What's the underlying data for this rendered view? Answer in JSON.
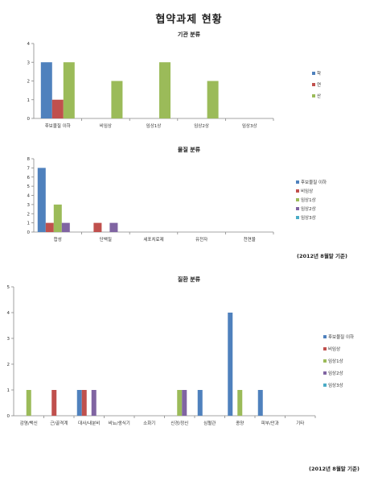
{
  "page_title": "협약과제 현황",
  "notes": {
    "date_note_1": "(2012년 8월말 기준)",
    "date_note_2": "(2012년 8월말 기준)"
  },
  "chart_data": [
    {
      "type": "bar",
      "title": "기관 분류",
      "categories": [
        "후보물질 이하",
        "비임상",
        "임상1상",
        "임상2상",
        "임상3상"
      ],
      "ylim": [
        0,
        4
      ],
      "yticks": [
        0,
        1,
        2,
        3,
        4
      ],
      "grid": false,
      "legend": "right",
      "series": [
        {
          "name": "학",
          "color": "#4F81BD",
          "values": [
            3,
            0,
            0,
            0,
            0
          ]
        },
        {
          "name": "연",
          "color": "#C0504D",
          "values": [
            1,
            0,
            0,
            0,
            0
          ]
        },
        {
          "name": "산",
          "color": "#9BBB59",
          "values": [
            3,
            2,
            3,
            2,
            0
          ]
        }
      ]
    },
    {
      "type": "bar",
      "title": "물질 분류",
      "categories": [
        "합성",
        "단백질",
        "세포치료제",
        "유전자",
        "천연물"
      ],
      "ylim": [
        0,
        8
      ],
      "yticks": [
        0,
        1,
        2,
        3,
        4,
        5,
        6,
        7,
        8
      ],
      "grid": false,
      "legend": "right",
      "series": [
        {
          "name": "후보물질 이하",
          "color": "#4F81BD",
          "values": [
            7,
            0,
            0,
            0,
            0
          ]
        },
        {
          "name": "비임상",
          "color": "#C0504D",
          "values": [
            1,
            1,
            0,
            0,
            0
          ]
        },
        {
          "name": "임상1상",
          "color": "#9BBB59",
          "values": [
            3,
            0,
            0,
            0,
            0
          ]
        },
        {
          "name": "임상2상",
          "color": "#8064A2",
          "values": [
            1,
            1,
            0,
            0,
            0
          ]
        },
        {
          "name": "임상3상",
          "color": "#4BACC6",
          "values": [
            0,
            0,
            0,
            0,
            0
          ]
        }
      ]
    },
    {
      "type": "bar",
      "title": "질환 분류",
      "categories": [
        "감염/백신",
        "근/골격계",
        "대사/내분비",
        "비뇨/생식기",
        "소화기",
        "신경/정신",
        "심혈관",
        "종양",
        "피부/안과",
        "기타"
      ],
      "ylim": [
        0,
        5
      ],
      "yticks": [
        0,
        1,
        2,
        3,
        4,
        5
      ],
      "grid": false,
      "legend": "right",
      "series": [
        {
          "name": "후보물질 이하",
          "color": "#4F81BD",
          "values": [
            0,
            0,
            1,
            0,
            0,
            0,
            1,
            4,
            1,
            0
          ]
        },
        {
          "name": "비임상",
          "color": "#C0504D",
          "values": [
            0,
            1,
            1,
            0,
            0,
            0,
            0,
            0,
            0,
            0
          ]
        },
        {
          "name": "임상1상",
          "color": "#9BBB59",
          "values": [
            1,
            0,
            0,
            0,
            0,
            1,
            0,
            1,
            0,
            0
          ]
        },
        {
          "name": "임상2상",
          "color": "#8064A2",
          "values": [
            0,
            0,
            1,
            0,
            0,
            1,
            0,
            0,
            0,
            0
          ]
        },
        {
          "name": "임상3상",
          "color": "#4BACC6",
          "values": [
            0,
            0,
            0,
            0,
            0,
            0,
            0,
            0,
            0,
            0
          ]
        }
      ]
    }
  ]
}
